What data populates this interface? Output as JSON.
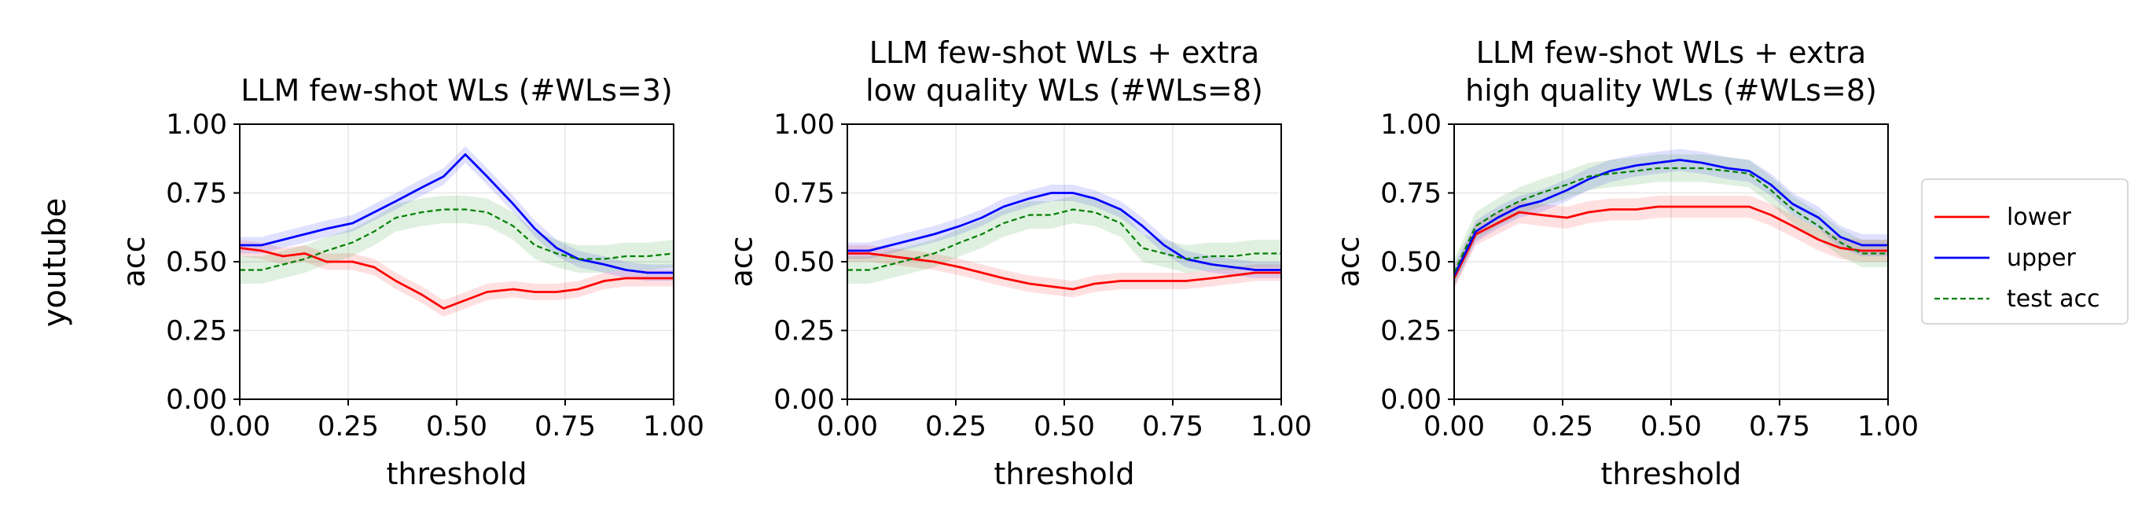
{
  "row_label": "youtube",
  "colors": {
    "lower": "#ff0000",
    "upper": "#0000ff",
    "test": "#008000"
  },
  "legend": [
    {
      "key": "lower",
      "label": "lower",
      "style": "solid"
    },
    {
      "key": "upper",
      "label": "upper",
      "style": "solid"
    },
    {
      "key": "test",
      "label": "test acc",
      "style": "dashed"
    }
  ],
  "chart_data": [
    {
      "type": "line",
      "title_lines": [
        "LLM few-shot WLs (#WLs=3)"
      ],
      "xlabel": "threshold",
      "ylabel": "acc",
      "xlim": [
        0,
        1
      ],
      "ylim": [
        0,
        1
      ],
      "xticks": [
        "0.00",
        "0.25",
        "0.50",
        "0.75",
        "1.00"
      ],
      "yticks": [
        "0.00",
        "0.25",
        "0.50",
        "0.75",
        "1.00"
      ],
      "grid": true,
      "x": [
        0,
        0.05,
        0.1,
        0.15,
        0.2,
        0.26,
        0.31,
        0.36,
        0.42,
        0.47,
        0.52,
        0.57,
        0.63,
        0.68,
        0.73,
        0.78,
        0.84,
        0.89,
        0.94,
        1.0
      ],
      "series": [
        {
          "name": "lower",
          "values": [
            0.55,
            0.54,
            0.52,
            0.53,
            0.5,
            0.5,
            0.48,
            0.43,
            0.38,
            0.33,
            0.36,
            0.39,
            0.4,
            0.39,
            0.39,
            0.4,
            0.43,
            0.44,
            0.44,
            0.44
          ],
          "band": 0.03
        },
        {
          "name": "upper",
          "values": [
            0.56,
            0.56,
            0.58,
            0.6,
            0.62,
            0.64,
            0.68,
            0.72,
            0.77,
            0.81,
            0.89,
            0.81,
            0.71,
            0.62,
            0.55,
            0.51,
            0.49,
            0.47,
            0.46,
            0.46
          ],
          "band": 0.03
        },
        {
          "name": "test acc",
          "values": [
            0.47,
            0.47,
            0.49,
            0.51,
            0.54,
            0.57,
            0.61,
            0.66,
            0.68,
            0.69,
            0.69,
            0.68,
            0.63,
            0.56,
            0.53,
            0.51,
            0.51,
            0.52,
            0.52,
            0.53
          ],
          "band": 0.05
        }
      ]
    },
    {
      "type": "line",
      "title_lines": [
        "LLM few-shot WLs + extra",
        "low quality WLs (#WLs=8)"
      ],
      "xlabel": "threshold",
      "ylabel": "acc",
      "xlim": [
        0,
        1
      ],
      "ylim": [
        0,
        1
      ],
      "xticks": [
        "0.00",
        "0.25",
        "0.50",
        "0.75",
        "1.00"
      ],
      "yticks": [
        "0.00",
        "0.25",
        "0.50",
        "0.75",
        "1.00"
      ],
      "grid": true,
      "x": [
        0,
        0.05,
        0.1,
        0.15,
        0.2,
        0.26,
        0.31,
        0.36,
        0.42,
        0.47,
        0.52,
        0.57,
        0.63,
        0.68,
        0.73,
        0.78,
        0.84,
        0.89,
        0.94,
        1.0
      ],
      "series": [
        {
          "name": "lower",
          "values": [
            0.53,
            0.53,
            0.52,
            0.51,
            0.5,
            0.48,
            0.46,
            0.44,
            0.42,
            0.41,
            0.4,
            0.42,
            0.43,
            0.43,
            0.43,
            0.43,
            0.44,
            0.45,
            0.46,
            0.46
          ],
          "band": 0.03
        },
        {
          "name": "upper",
          "values": [
            0.54,
            0.54,
            0.56,
            0.58,
            0.6,
            0.63,
            0.66,
            0.7,
            0.73,
            0.75,
            0.75,
            0.73,
            0.69,
            0.63,
            0.56,
            0.51,
            0.49,
            0.48,
            0.47,
            0.47
          ],
          "band": 0.03
        },
        {
          "name": "test acc",
          "values": [
            0.47,
            0.47,
            0.49,
            0.51,
            0.53,
            0.57,
            0.6,
            0.64,
            0.67,
            0.67,
            0.69,
            0.68,
            0.64,
            0.55,
            0.53,
            0.51,
            0.52,
            0.52,
            0.53,
            0.53
          ],
          "band": 0.05
        }
      ]
    },
    {
      "type": "line",
      "title_lines": [
        "LLM few-shot WLs + extra",
        "high quality WLs (#WLs=8)"
      ],
      "xlabel": "threshold",
      "ylabel": "acc",
      "xlim": [
        0,
        1
      ],
      "ylim": [
        0,
        1
      ],
      "xticks": [
        "0.00",
        "0.25",
        "0.50",
        "0.75",
        "1.00"
      ],
      "yticks": [
        "0.00",
        "0.25",
        "0.50",
        "0.75",
        "1.00"
      ],
      "grid": true,
      "x": [
        0,
        0.05,
        0.1,
        0.15,
        0.2,
        0.26,
        0.31,
        0.36,
        0.42,
        0.47,
        0.52,
        0.57,
        0.63,
        0.68,
        0.73,
        0.78,
        0.84,
        0.89,
        0.94,
        1.0
      ],
      "series": [
        {
          "name": "lower",
          "values": [
            0.44,
            0.6,
            0.64,
            0.68,
            0.67,
            0.66,
            0.68,
            0.69,
            0.69,
            0.7,
            0.7,
            0.7,
            0.7,
            0.7,
            0.67,
            0.63,
            0.58,
            0.55,
            0.54,
            0.54
          ],
          "band": 0.04
        },
        {
          "name": "upper",
          "values": [
            0.45,
            0.61,
            0.66,
            0.7,
            0.72,
            0.76,
            0.8,
            0.83,
            0.85,
            0.86,
            0.87,
            0.86,
            0.84,
            0.83,
            0.78,
            0.71,
            0.66,
            0.59,
            0.56,
            0.56
          ],
          "band": 0.04
        },
        {
          "name": "test acc",
          "values": [
            0.46,
            0.63,
            0.68,
            0.72,
            0.75,
            0.78,
            0.81,
            0.82,
            0.83,
            0.84,
            0.84,
            0.84,
            0.83,
            0.82,
            0.76,
            0.69,
            0.63,
            0.57,
            0.53,
            0.53
          ],
          "band": 0.05
        }
      ]
    }
  ]
}
